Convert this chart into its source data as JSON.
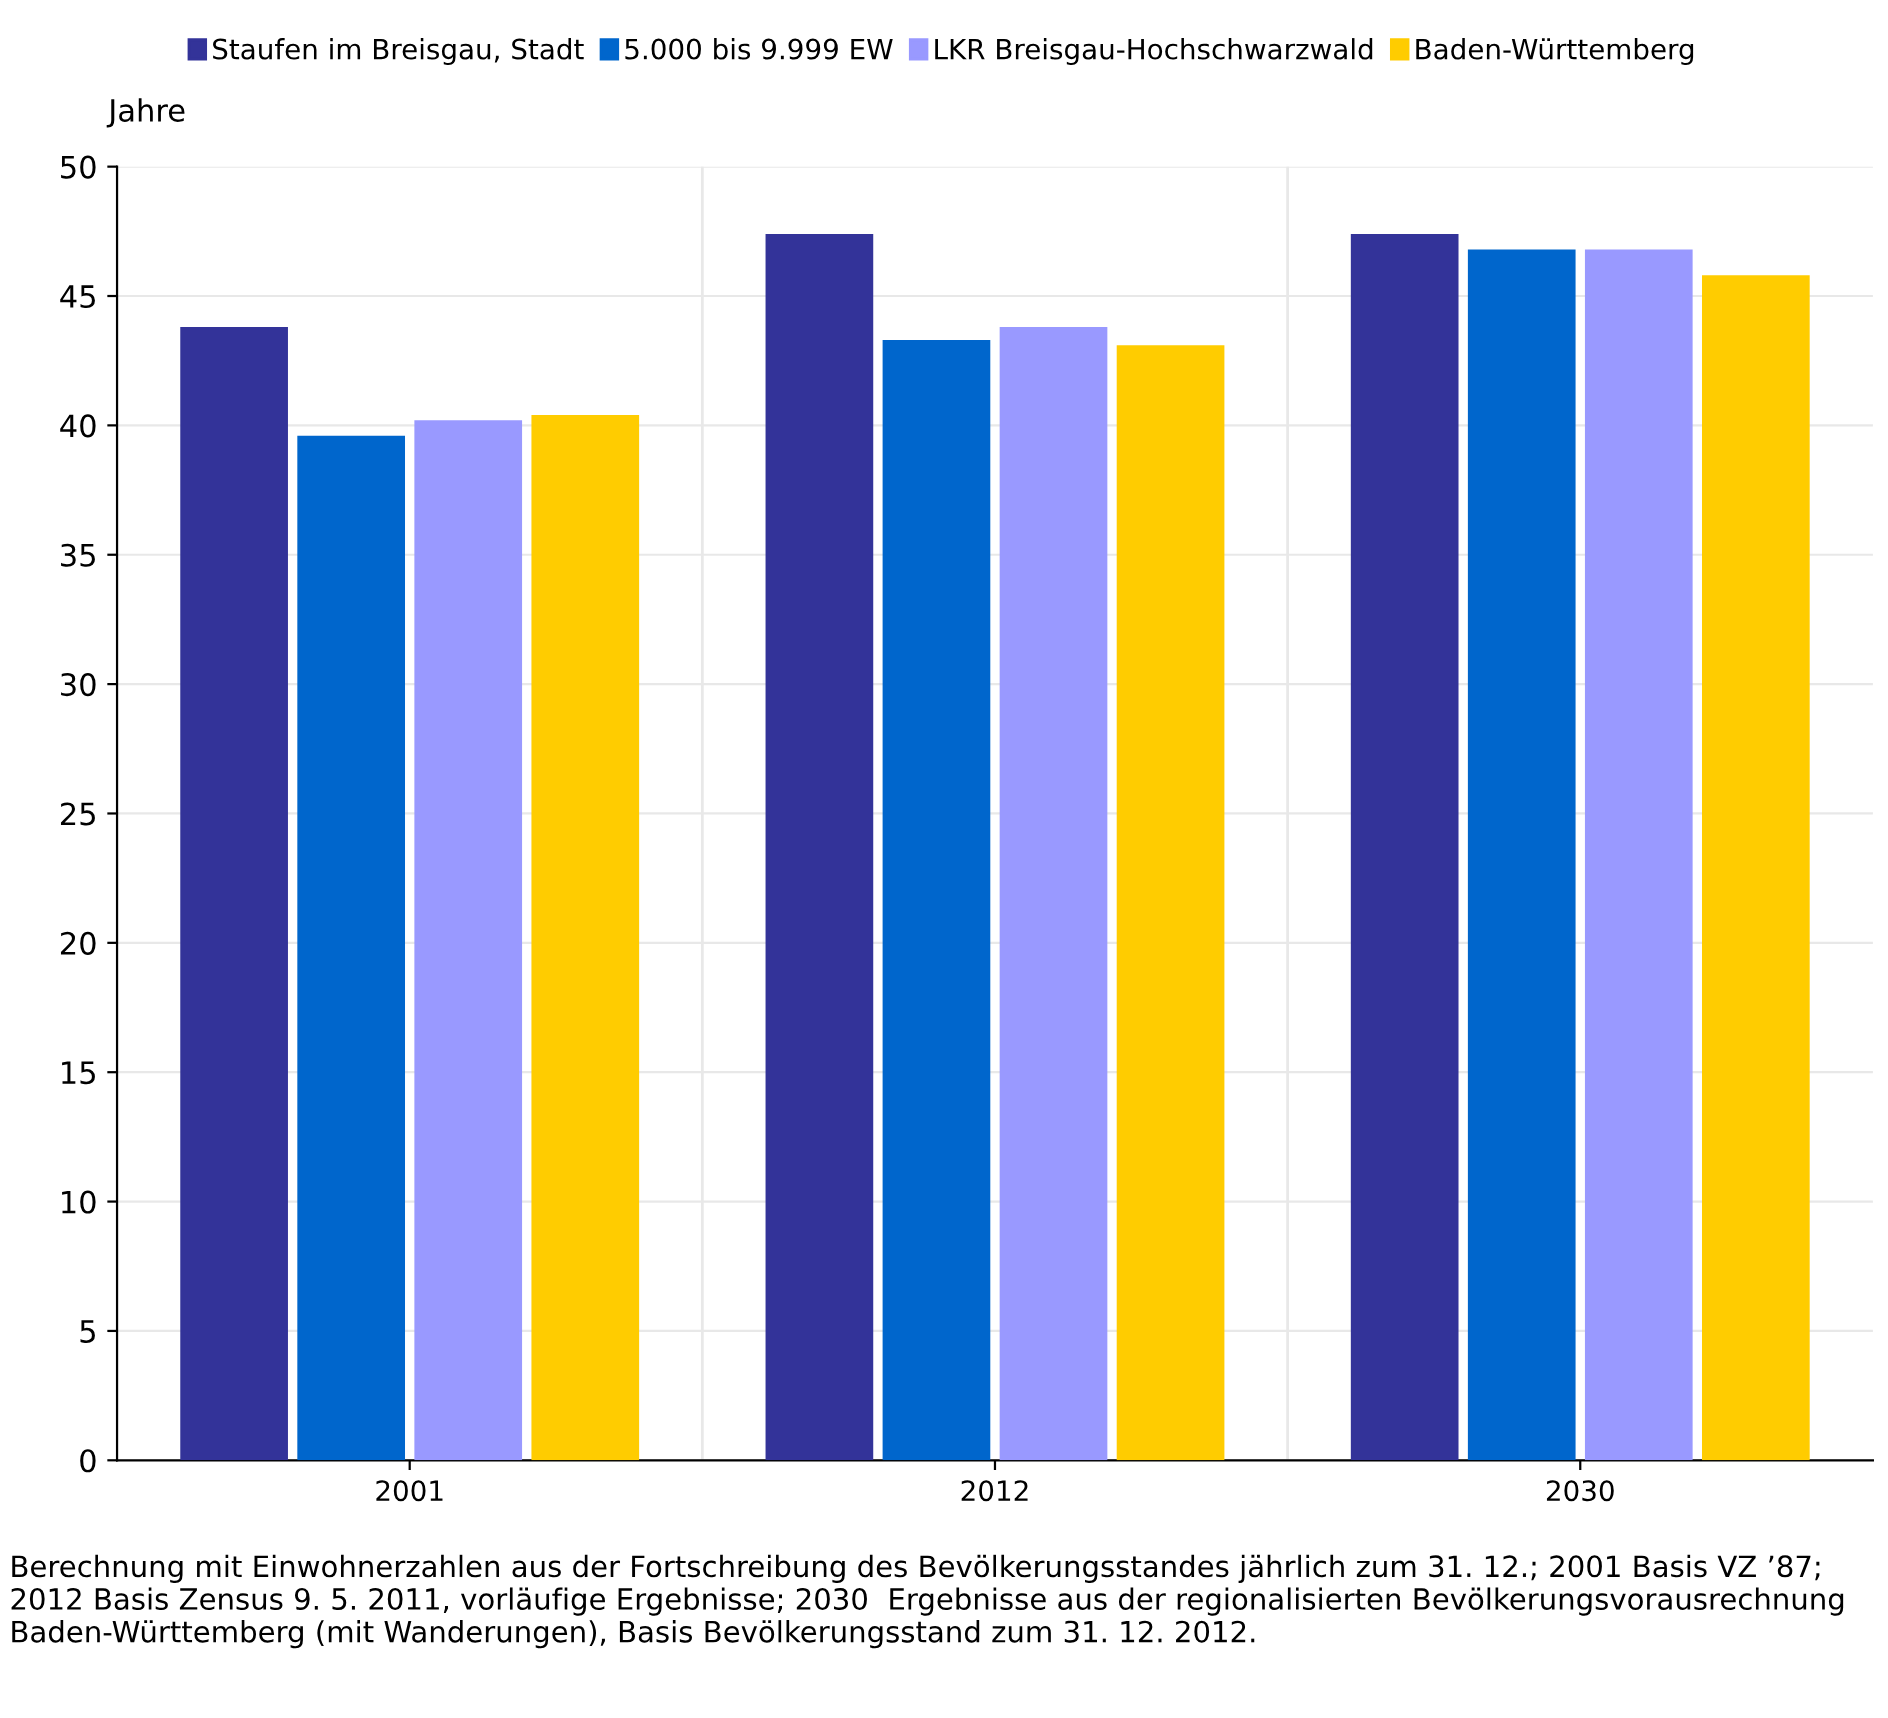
{
  "chart_data": {
    "type": "bar",
    "ylabel": "Jahre",
    "categories": [
      "2001",
      "2012",
      "2030"
    ],
    "series": [
      {
        "name": "Staufen im Breisgau, Stadt",
        "color": "#333399",
        "values": [
          43.8,
          47.4,
          47.4
        ]
      },
      {
        "name": "5.000 bis 9.999 EW",
        "color": "#0066cc",
        "values": [
          39.6,
          43.3,
          46.8
        ]
      },
      {
        "name": "LKR Breisgau-Hochschwarzwald",
        "color": "#9999ff",
        "values": [
          40.2,
          43.8,
          46.8
        ]
      },
      {
        "name": "Baden-Württemberg",
        "color": "#ffcc00",
        "values": [
          40.4,
          43.1,
          45.8
        ]
      }
    ],
    "ylim": [
      0,
      50
    ],
    "yticks": [
      0,
      5,
      10,
      15,
      20,
      25,
      30,
      35,
      40,
      45,
      50
    ],
    "grid": true,
    "legend": "top",
    "annotations": [
      "Berechnung mit Einwohnerzahlen aus der Fortschreibung des Bevölkerungsstandes jährlich zum 31. 12.; 2001 Basis VZ ’87; 2012 Basis Zensus 9. 5. 2011, vorläufige Ergebnisse; 2030  Ergebnisse aus der regionalisierten Bevölkerungsvorausrechnung Baden-Württemberg (mit Wanderungen), Basis Bevölkerungsstand zum 31. 12. 2012."
    ]
  }
}
